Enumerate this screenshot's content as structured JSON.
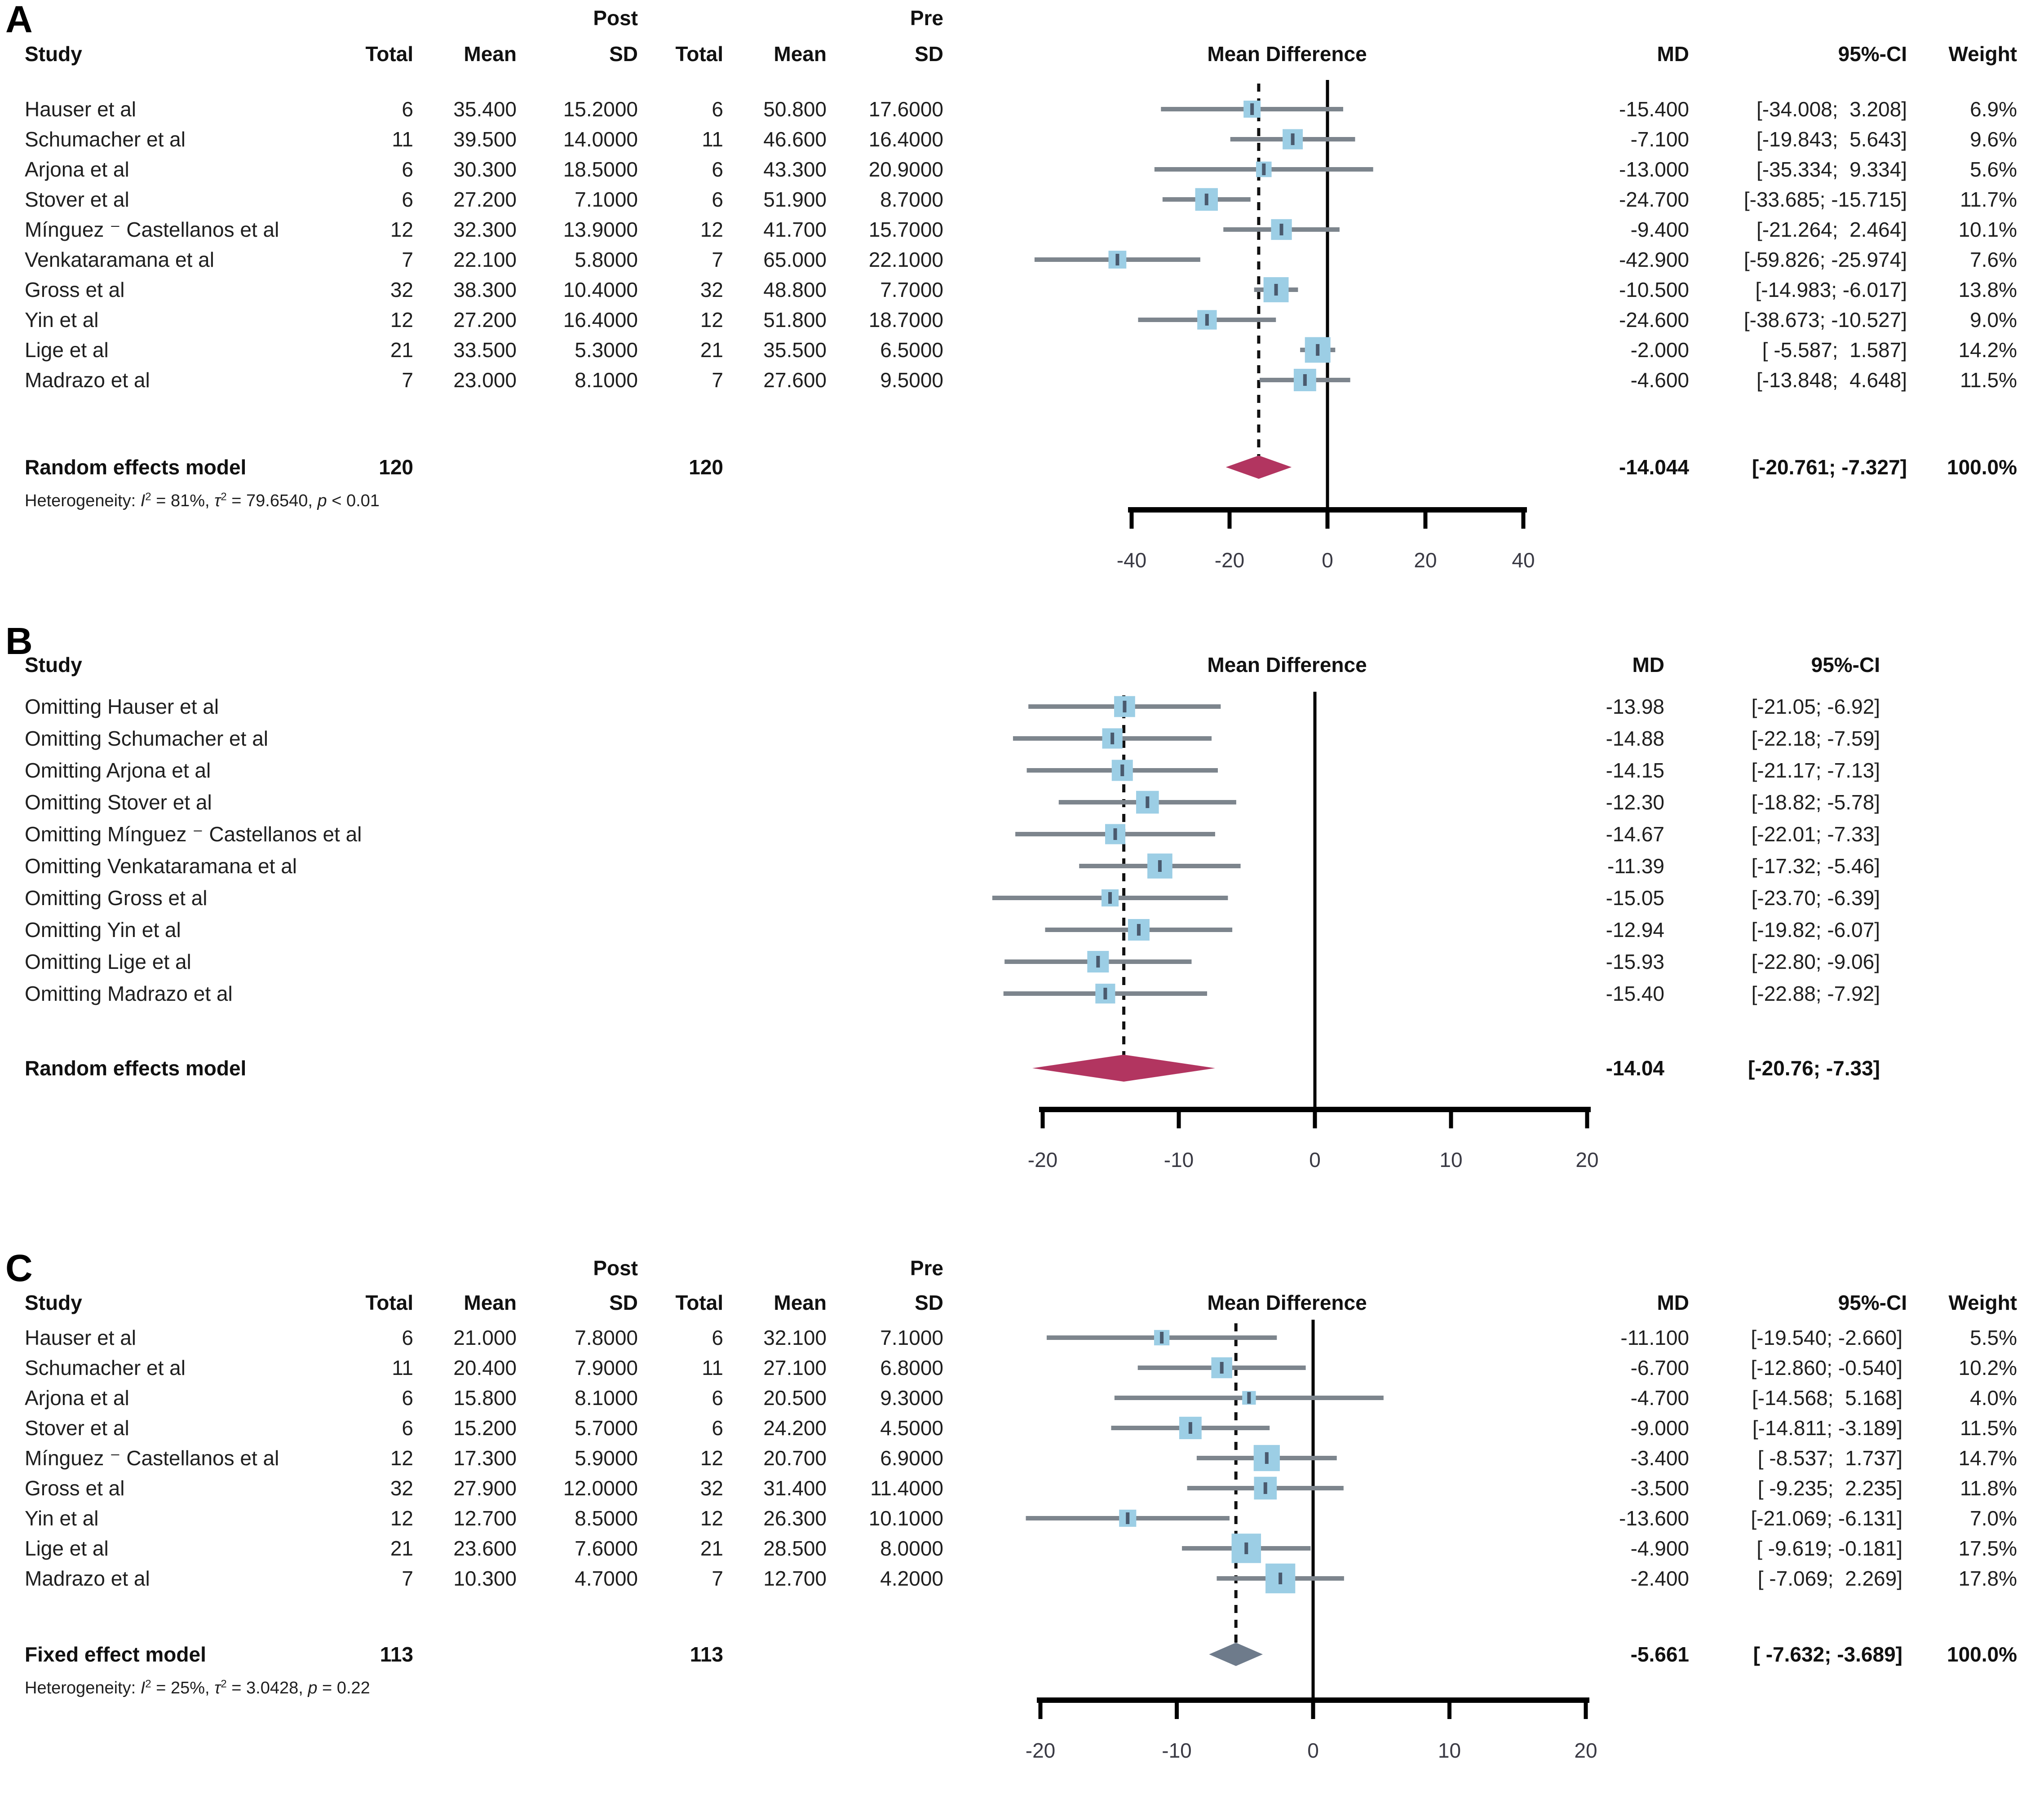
{
  "colors": {
    "background": "#ffffff",
    "text": "#1f1f1f",
    "header_text": "#111111",
    "square": "#9CCEE5",
    "square_marker": "#4A5A6E",
    "whisker": "#7D858D",
    "zero_line": "#000000",
    "dashed_line": "#111111",
    "axis": "#000000",
    "tick_label": "#3A3A44",
    "diamond_random": "#B23560",
    "diamond_fixed": "#6E7B8B"
  },
  "panels": [
    {
      "letter": "A",
      "header": {
        "group_post": "Post",
        "group_pre": "Pre",
        "study": "Study",
        "total": "Total",
        "mean": "Mean",
        "sd": "SD",
        "total_pre": "Total",
        "mean_pre": "Mean",
        "sd_pre": "SD",
        "effect": "Mean Difference",
        "md": "MD",
        "ci": "95%-CI",
        "weight": "Weight"
      },
      "rows": [
        {
          "study": "Hauser et al",
          "total": "6",
          "mean": "35.400",
          "sd": "15.2000",
          "total_pre": "6",
          "mean_pre": "50.800",
          "sd_pre": "17.6000",
          "md": "-15.400",
          "ci": "[-34.008;  3.208]",
          "weight": "6.9%",
          "md_value": -15.4,
          "ci_low": -34.008,
          "ci_high": 3.208,
          "weight_value": 6.9
        },
        {
          "study": "Schumacher et al",
          "total": "11",
          "mean": "39.500",
          "sd": "14.0000",
          "total_pre": "11",
          "mean_pre": "46.600",
          "sd_pre": "16.4000",
          "md": "-7.100",
          "ci": "[-19.843;  5.643]",
          "weight": "9.6%",
          "md_value": -7.1,
          "ci_low": -19.843,
          "ci_high": 5.643,
          "weight_value": 9.6
        },
        {
          "study": "Arjona et al",
          "total": "6",
          "mean": "30.300",
          "sd": "18.5000",
          "total_pre": "6",
          "mean_pre": "43.300",
          "sd_pre": "20.9000",
          "md": "-13.000",
          "ci": "[-35.334;  9.334]",
          "weight": "5.6%",
          "md_value": -13.0,
          "ci_low": -35.334,
          "ci_high": 9.334,
          "weight_value": 5.6
        },
        {
          "study": "Stover et al",
          "total": "6",
          "mean": "27.200",
          "sd": "7.1000",
          "total_pre": "6",
          "mean_pre": "51.900",
          "sd_pre": "8.7000",
          "md": "-24.700",
          "ci": "[-33.685; -15.715]",
          "weight": "11.7%",
          "md_value": -24.7,
          "ci_low": -33.685,
          "ci_high": -15.715,
          "weight_value": 11.7
        },
        {
          "study": "Mínguez ⁻ Castellanos et al",
          "total": "12",
          "mean": "32.300",
          "sd": "13.9000",
          "total_pre": "12",
          "mean_pre": "41.700",
          "sd_pre": "15.7000",
          "md": "-9.400",
          "ci": "[-21.264;  2.464]",
          "weight": "10.1%",
          "md_value": -9.4,
          "ci_low": -21.264,
          "ci_high": 2.464,
          "weight_value": 10.1
        },
        {
          "study": "Venkataramana et al",
          "total": "7",
          "mean": "22.100",
          "sd": "5.8000",
          "total_pre": "7",
          "mean_pre": "65.000",
          "sd_pre": "22.1000",
          "md": "-42.900",
          "ci": "[-59.826; -25.974]",
          "weight": "7.6%",
          "md_value": -42.9,
          "ci_low": -59.826,
          "ci_high": -25.974,
          "weight_value": 7.6
        },
        {
          "study": "Gross et al",
          "total": "32",
          "mean": "38.300",
          "sd": "10.4000",
          "total_pre": "32",
          "mean_pre": "48.800",
          "sd_pre": "7.7000",
          "md": "-10.500",
          "ci": "[-14.983; -6.017]",
          "weight": "13.8%",
          "md_value": -10.5,
          "ci_low": -14.983,
          "ci_high": -6.017,
          "weight_value": 13.8
        },
        {
          "study": "Yin et al",
          "total": "12",
          "mean": "27.200",
          "sd": "16.4000",
          "total_pre": "12",
          "mean_pre": "51.800",
          "sd_pre": "18.7000",
          "md": "-24.600",
          "ci": "[-38.673; -10.527]",
          "weight": "9.0%",
          "md_value": -24.6,
          "ci_low": -38.673,
          "ci_high": -10.527,
          "weight_value": 9.0
        },
        {
          "study": "Lige et al",
          "total": "21",
          "mean": "33.500",
          "sd": "5.3000",
          "total_pre": "21",
          "mean_pre": "35.500",
          "sd_pre": "6.5000",
          "md": "-2.000",
          "ci": "[ -5.587;  1.587]",
          "weight": "14.2%",
          "md_value": -2.0,
          "ci_low": -5.587,
          "ci_high": 1.587,
          "weight_value": 14.2
        },
        {
          "study": "Madrazo et al",
          "total": "7",
          "mean": "23.000",
          "sd": "8.1000",
          "total_pre": "7",
          "mean_pre": "27.600",
          "sd_pre": "9.5000",
          "md": "-4.600",
          "ci": "[-13.848;  4.648]",
          "weight": "11.5%",
          "md_value": -4.6,
          "ci_low": -13.848,
          "ci_high": 4.648,
          "weight_value": 11.5
        }
      ],
      "model": {
        "label": "Random effects model",
        "total": "120",
        "total_pre": "120",
        "md": "-14.044",
        "ci": "[-20.761; -7.327]",
        "weight": "100.0%",
        "md_value": -14.044,
        "ci_low": -20.761,
        "ci_high": -7.327,
        "diamond": "random"
      },
      "heterogeneity": {
        "prefix": "Heterogeneity: ",
        "terms": [
          {
            "sym": "I",
            "sup": "2",
            "rest": " = 81%, "
          },
          {
            "sym": "τ",
            "sup": "2",
            "rest": " = 79.6540, "
          },
          {
            "sym": "p",
            "rest": " < 0.01"
          }
        ]
      },
      "axis": {
        "min": -40,
        "max": 40,
        "ticks": [
          "-40",
          "-20",
          "0",
          "20",
          "40"
        ],
        "tick_values": [
          -40,
          -20,
          0,
          20,
          40
        ]
      }
    },
    {
      "letter": "B",
      "header": {
        "study": "Study",
        "effect": "Mean Difference",
        "md": "MD",
        "ci": "95%-CI"
      },
      "rows": [
        {
          "study": "Omitting Hauser et al",
          "md": "-13.98",
          "ci": "[-21.05; -6.92]",
          "md_value": -13.98,
          "ci_low": -21.05,
          "ci_high": -6.92
        },
        {
          "study": "Omitting Schumacher et al",
          "md": "-14.88",
          "ci": "[-22.18; -7.59]",
          "md_value": -14.88,
          "ci_low": -22.18,
          "ci_high": -7.59
        },
        {
          "study": "Omitting Arjona et al",
          "md": "-14.15",
          "ci": "[-21.17; -7.13]",
          "md_value": -14.15,
          "ci_low": -21.17,
          "ci_high": -7.13
        },
        {
          "study": "Omitting Stover et al",
          "md": "-12.30",
          "ci": "[-18.82; -5.78]",
          "md_value": -12.3,
          "ci_low": -18.82,
          "ci_high": -5.78
        },
        {
          "study": "Omitting Mínguez ⁻ Castellanos et al",
          "md": "-14.67",
          "ci": "[-22.01; -7.33]",
          "md_value": -14.67,
          "ci_low": -22.01,
          "ci_high": -7.33
        },
        {
          "study": "Omitting Venkataramana et al",
          "md": "-11.39",
          "ci": "[-17.32; -5.46]",
          "md_value": -11.39,
          "ci_low": -17.32,
          "ci_high": -5.46
        },
        {
          "study": "Omitting Gross et al",
          "md": "-15.05",
          "ci": "[-23.70; -6.39]",
          "md_value": -15.05,
          "ci_low": -23.7,
          "ci_high": -6.39
        },
        {
          "study": "Omitting Yin et al",
          "md": "-12.94",
          "ci": "[-19.82; -6.07]",
          "md_value": -12.94,
          "ci_low": -19.82,
          "ci_high": -6.07
        },
        {
          "study": "Omitting Lige et al",
          "md": "-15.93",
          "ci": "[-22.80; -9.06]",
          "md_value": -15.93,
          "ci_low": -22.8,
          "ci_high": -9.06
        },
        {
          "study": "Omitting Madrazo et al",
          "md": "-15.40",
          "ci": "[-22.88; -7.92]",
          "md_value": -15.4,
          "ci_low": -22.88,
          "ci_high": -7.92
        }
      ],
      "model": {
        "label": "Random effects model",
        "md": "-14.04",
        "ci": "[-20.76; -7.33]",
        "md_value": -14.04,
        "ci_low": -20.76,
        "ci_high": -7.33,
        "diamond": "random"
      },
      "axis": {
        "min": -20,
        "max": 20,
        "ticks": [
          "-20",
          "-10",
          "0",
          "10",
          "20"
        ],
        "tick_values": [
          -20,
          -10,
          0,
          10,
          20
        ]
      }
    },
    {
      "letter": "C",
      "header": {
        "group_post": "Post",
        "group_pre": "Pre",
        "study": "Study",
        "total": "Total",
        "mean": "Mean",
        "sd": "SD",
        "total_pre": "Total",
        "mean_pre": "Mean",
        "sd_pre": "SD",
        "effect": "Mean Difference",
        "md": "MD",
        "ci": "95%-CI",
        "weight": "Weight"
      },
      "rows": [
        {
          "study": "Hauser et al",
          "total": "6",
          "mean": "21.000",
          "sd": "7.8000",
          "total_pre": "6",
          "mean_pre": "32.100",
          "sd_pre": "7.1000",
          "md": "-11.100",
          "ci": "[-19.540; -2.660]",
          "weight": "5.5%",
          "md_value": -11.1,
          "ci_low": -19.54,
          "ci_high": -2.66,
          "weight_value": 5.5
        },
        {
          "study": "Schumacher et al",
          "total": "11",
          "mean": "20.400",
          "sd": "7.9000",
          "total_pre": "11",
          "mean_pre": "27.100",
          "sd_pre": "6.8000",
          "md": "-6.700",
          "ci": "[-12.860; -0.540]",
          "weight": "10.2%",
          "md_value": -6.7,
          "ci_low": -12.86,
          "ci_high": -0.54,
          "weight_value": 10.2
        },
        {
          "study": "Arjona et al",
          "total": "6",
          "mean": "15.800",
          "sd": "8.1000",
          "total_pre": "6",
          "mean_pre": "20.500",
          "sd_pre": "9.3000",
          "md": "-4.700",
          "ci": "[-14.568;  5.168]",
          "weight": "4.0%",
          "md_value": -4.7,
          "ci_low": -14.568,
          "ci_high": 5.168,
          "weight_value": 4.0
        },
        {
          "study": "Stover et al",
          "total": "6",
          "mean": "15.200",
          "sd": "5.7000",
          "total_pre": "6",
          "mean_pre": "24.200",
          "sd_pre": "4.5000",
          "md": "-9.000",
          "ci": "[-14.811; -3.189]",
          "weight": "11.5%",
          "md_value": -9.0,
          "ci_low": -14.811,
          "ci_high": -3.189,
          "weight_value": 11.5
        },
        {
          "study": "Mínguez ⁻ Castellanos et al",
          "total": "12",
          "mean": "17.300",
          "sd": "5.9000",
          "total_pre": "12",
          "mean_pre": "20.700",
          "sd_pre": "6.9000",
          "md": "-3.400",
          "ci": "[ -8.537;  1.737]",
          "weight": "14.7%",
          "md_value": -3.4,
          "ci_low": -8.537,
          "ci_high": 1.737,
          "weight_value": 14.7
        },
        {
          "study": "Gross et al",
          "total": "32",
          "mean": "27.900",
          "sd": "12.0000",
          "total_pre": "32",
          "mean_pre": "31.400",
          "sd_pre": "11.4000",
          "md": "-3.500",
          "ci": "[ -9.235;  2.235]",
          "weight": "11.8%",
          "md_value": -3.5,
          "ci_low": -9.235,
          "ci_high": 2.235,
          "weight_value": 11.8
        },
        {
          "study": "Yin et al",
          "total": "12",
          "mean": "12.700",
          "sd": "8.5000",
          "total_pre": "12",
          "mean_pre": "26.300",
          "sd_pre": "10.1000",
          "md": "-13.600",
          "ci": "[-21.069; -6.131]",
          "weight": "7.0%",
          "md_value": -13.6,
          "ci_low": -21.069,
          "ci_high": -6.131,
          "weight_value": 7.0
        },
        {
          "study": "Lige et al",
          "total": "21",
          "mean": "23.600",
          "sd": "7.6000",
          "total_pre": "21",
          "mean_pre": "28.500",
          "sd_pre": "8.0000",
          "md": "-4.900",
          "ci": "[ -9.619; -0.181]",
          "weight": "17.5%",
          "md_value": -4.9,
          "ci_low": -9.619,
          "ci_high": -0.181,
          "weight_value": 17.5
        },
        {
          "study": "Madrazo et al",
          "total": "7",
          "mean": "10.300",
          "sd": "4.7000",
          "total_pre": "7",
          "mean_pre": "12.700",
          "sd_pre": "4.2000",
          "md": "-2.400",
          "ci": "[ -7.069;  2.269]",
          "weight": "17.8%",
          "md_value": -2.4,
          "ci_low": -7.069,
          "ci_high": 2.269,
          "weight_value": 17.8
        }
      ],
      "model": {
        "label": "Fixed effect model",
        "total": "113",
        "total_pre": "113",
        "md": "-5.661",
        "ci": "[ -7.632; -3.689]",
        "weight": "100.0%",
        "md_value": -5.661,
        "ci_low": -7.632,
        "ci_high": -3.689,
        "diamond": "fixed"
      },
      "heterogeneity": {
        "prefix": "Heterogeneity: ",
        "terms": [
          {
            "sym": "I",
            "sup": "2",
            "rest": " = 25%, "
          },
          {
            "sym": "τ",
            "sup": "2",
            "rest": " = 3.0428, "
          },
          {
            "sym": "p",
            "rest": " = 0.22"
          }
        ]
      },
      "axis": {
        "min": -20,
        "max": 20,
        "ticks": [
          "-20",
          "-10",
          "0",
          "10",
          "20"
        ],
        "tick_values": [
          -20,
          -10,
          0,
          10,
          20
        ]
      }
    }
  ],
  "chart_data": [
    {
      "type": "scatter",
      "title": "A: forest plot, post vs pre (random effects)",
      "xlabel": "Mean Difference",
      "xlim": [
        -40,
        40
      ],
      "ticks": [
        -40,
        -20,
        0,
        20,
        40
      ],
      "categories": [
        "Hauser et al",
        "Schumacher et al",
        "Arjona et al",
        "Stover et al",
        "Mínguez ⁻ Castellanos et al",
        "Venkataramana et al",
        "Gross et al",
        "Yin et al",
        "Lige et al",
        "Madrazo et al"
      ],
      "md": [
        -15.4,
        -7.1,
        -13.0,
        -24.7,
        -9.4,
        -42.9,
        -10.5,
        -24.6,
        -2.0,
        -4.6
      ],
      "ci_low": [
        -34.008,
        -19.843,
        -35.334,
        -33.685,
        -21.264,
        -59.826,
        -14.983,
        -38.673,
        -5.587,
        -13.848
      ],
      "ci_high": [
        3.208,
        5.643,
        9.334,
        -15.715,
        2.464,
        -25.974,
        -6.017,
        -10.527,
        1.587,
        4.648
      ],
      "weights_pct": [
        6.9,
        9.6,
        5.6,
        11.7,
        10.1,
        7.6,
        13.8,
        9.0,
        14.2,
        11.5
      ],
      "summary": {
        "label": "Random effects model",
        "md": -14.044,
        "ci_low": -20.761,
        "ci_high": -7.327,
        "weight_pct": 100.0
      },
      "heterogeneity": "I² = 81%, τ² = 79.6540, p < 0.01"
    },
    {
      "type": "scatter",
      "title": "B: leave-one-out sensitivity analysis",
      "xlabel": "Mean Difference",
      "xlim": [
        -20,
        20
      ],
      "ticks": [
        -20,
        -10,
        0,
        10,
        20
      ],
      "categories": [
        "Omitting Hauser et al",
        "Omitting Schumacher et al",
        "Omitting Arjona et al",
        "Omitting Stover et al",
        "Omitting Mínguez ⁻ Castellanos et al",
        "Omitting Venkataramana et al",
        "Omitting Gross et al",
        "Omitting Yin et al",
        "Omitting Lige et al",
        "Omitting Madrazo et al"
      ],
      "md": [
        -13.98,
        -14.88,
        -14.15,
        -12.3,
        -14.67,
        -11.39,
        -15.05,
        -12.94,
        -15.93,
        -15.4
      ],
      "ci_low": [
        -21.05,
        -22.18,
        -21.17,
        -18.82,
        -22.01,
        -17.32,
        -23.7,
        -19.82,
        -22.8,
        -22.88
      ],
      "ci_high": [
        -6.92,
        -7.59,
        -7.13,
        -5.78,
        -7.33,
        -5.46,
        -6.39,
        -6.07,
        -9.06,
        -7.92
      ],
      "summary": {
        "label": "Random effects model",
        "md": -14.04,
        "ci_low": -20.76,
        "ci_high": -7.33
      }
    },
    {
      "type": "scatter",
      "title": "C: forest plot, post vs pre (fixed effect)",
      "xlabel": "Mean Difference",
      "xlim": [
        -20,
        20
      ],
      "ticks": [
        -20,
        -10,
        0,
        10,
        20
      ],
      "categories": [
        "Hauser et al",
        "Schumacher et al",
        "Arjona et al",
        "Stover et al",
        "Mínguez ⁻ Castellanos et al",
        "Gross et al",
        "Yin et al",
        "Lige et al",
        "Madrazo et al"
      ],
      "md": [
        -11.1,
        -6.7,
        -4.7,
        -9.0,
        -3.4,
        -3.5,
        -13.6,
        -4.9,
        -2.4
      ],
      "ci_low": [
        -19.54,
        -12.86,
        -14.568,
        -14.811,
        -8.537,
        -9.235,
        -21.069,
        -9.619,
        -7.069
      ],
      "ci_high": [
        -2.66,
        -0.54,
        5.168,
        -3.189,
        1.737,
        2.235,
        -6.131,
        -0.181,
        2.269
      ],
      "weights_pct": [
        5.5,
        10.2,
        4.0,
        11.5,
        14.7,
        11.8,
        7.0,
        17.5,
        17.8
      ],
      "summary": {
        "label": "Fixed effect model",
        "md": -5.661,
        "ci_low": -7.632,
        "ci_high": -3.689,
        "weight_pct": 100.0
      },
      "heterogeneity": "I² = 25%, τ² = 3.0428, p = 0.22"
    }
  ]
}
